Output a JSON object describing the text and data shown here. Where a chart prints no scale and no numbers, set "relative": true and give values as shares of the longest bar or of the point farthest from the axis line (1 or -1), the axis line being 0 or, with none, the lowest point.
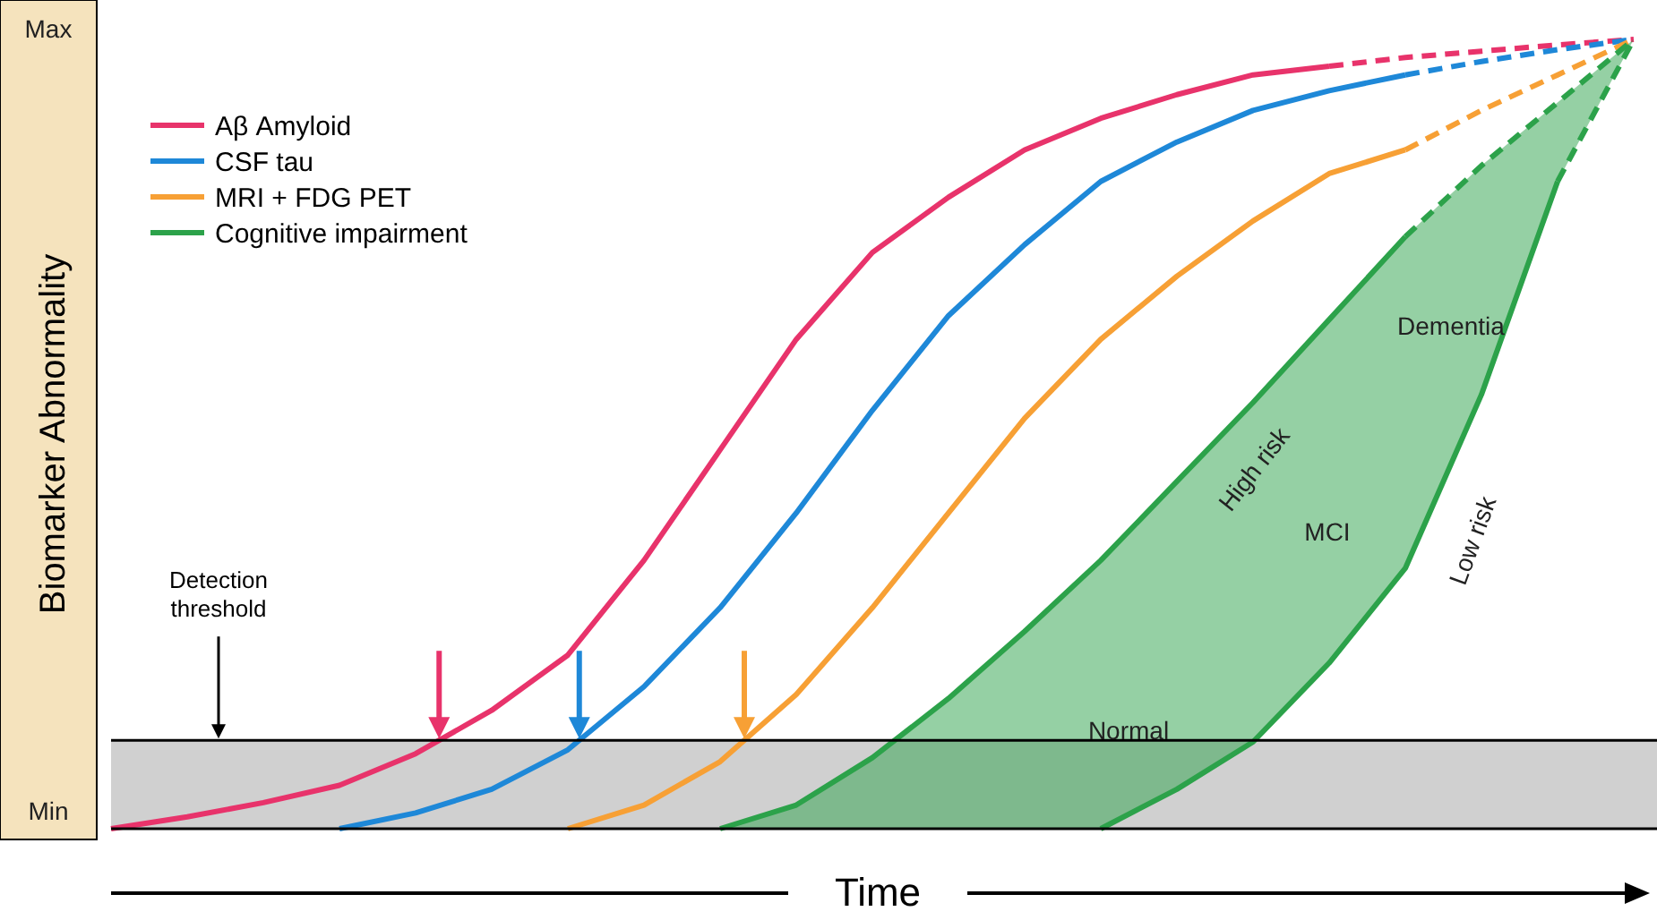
{
  "chart_data": {
    "type": "line",
    "ylabel": "Biomarker Abnormality",
    "xlabel": "Time",
    "categories": [
      null,
      null,
      null,
      null,
      null,
      null,
      null,
      null,
      null,
      null,
      null,
      null,
      null,
      null,
      null,
      null,
      null,
      null,
      null,
      null,
      null
    ],
    "relative": true,
    "legend": "top left",
    "line_style": "solid",
    "series": [
      {
        "name": "Aβ Amyloid",
        "color": "#e8336b",
        "values": [
          0,
          0.015,
          0.033,
          0.055,
          0.095,
          0.15,
          0.22,
          0.34,
          0.48,
          0.62,
          0.73,
          0.8,
          0.86,
          0.9,
          0.93,
          0.955,
          0.966,
          null,
          null,
          null,
          null
        ]
      },
      {
        "name": "CSF tau",
        "color": "#1e88d8",
        "values": [
          null,
          null,
          null,
          0,
          0.02,
          0.05,
          0.1,
          0.18,
          0.28,
          0.4,
          0.53,
          0.65,
          0.74,
          0.82,
          0.87,
          0.91,
          0.935,
          0.955,
          null,
          null,
          null
        ]
      },
      {
        "name": "MRI + FDG PET",
        "color": "#f7a035",
        "values": [
          null,
          null,
          null,
          null,
          null,
          null,
          0,
          0.03,
          0.085,
          0.17,
          0.28,
          0.4,
          0.52,
          0.62,
          0.7,
          0.77,
          0.83,
          0.86,
          null,
          null,
          null
        ]
      },
      {
        "name": "Cognitive impairment",
        "color": "#2ca24a",
        "values": [
          null,
          null,
          null,
          null,
          null,
          null,
          null,
          null,
          0,
          0.03,
          0.09,
          0.165,
          0.25,
          0.34,
          0.44,
          0.54,
          0.645,
          0.75,
          null,
          null,
          null
        ],
        "lower": [
          null,
          null,
          null,
          null,
          null,
          null,
          null,
          null,
          0,
          0,
          0,
          0,
          0,
          0,
          0.05,
          0.11,
          0.21,
          0.33,
          null,
          null,
          null
        ],
        "upper": [
          null,
          null,
          null,
          null,
          null,
          null,
          null,
          null,
          0,
          0.03,
          0.09,
          0.165,
          0.25,
          0.34,
          0.44,
          0.54,
          0.645,
          0.75,
          null,
          null,
          null
        ]
      },
      {
        "color": "#e8336b",
        "line_style": "dashed",
        "values": [
          null,
          null,
          null,
          null,
          null,
          null,
          null,
          null,
          null,
          null,
          null,
          null,
          null,
          null,
          null,
          null,
          0.966,
          0.977,
          0.985,
          0.993,
          1
        ]
      },
      {
        "color": "#1e88d8",
        "line_style": "dashed",
        "values": [
          null,
          null,
          null,
          null,
          null,
          null,
          null,
          null,
          null,
          null,
          null,
          null,
          null,
          null,
          null,
          null,
          null,
          0.955,
          0.972,
          0.987,
          1
        ]
      },
      {
        "color": "#f7a035",
        "line_style": "dashed",
        "values": [
          null,
          null,
          null,
          null,
          null,
          null,
          null,
          null,
          null,
          null,
          null,
          null,
          null,
          null,
          null,
          null,
          null,
          0.86,
          0.91,
          0.955,
          1
        ]
      },
      {
        "color": "#2ca24a",
        "line_style": "dashed",
        "values": [
          null,
          null,
          null,
          null,
          null,
          null,
          null,
          null,
          null,
          null,
          null,
          null,
          null,
          null,
          null,
          null,
          null,
          0.75,
          0.84,
          0.92,
          1
        ],
        "lower": [
          null,
          null,
          null,
          null,
          null,
          null,
          null,
          null,
          null,
          null,
          null,
          null,
          null,
          null,
          null,
          null,
          null,
          0.33,
          0.55,
          0.82,
          1
        ],
        "upper": [
          null,
          null,
          null,
          null,
          null,
          null,
          null,
          null,
          null,
          null,
          null,
          null,
          null,
          null,
          null,
          null,
          null,
          0.75,
          0.84,
          0.92,
          1
        ]
      },
      {
        "color": "#2ca24a",
        "values": [
          null,
          null,
          null,
          null,
          null,
          null,
          null,
          null,
          null,
          null,
          null,
          null,
          null,
          0,
          0.05,
          0.11,
          0.21,
          0.33,
          0.55,
          0.82,
          null
        ]
      },
      {
        "color": "#2ca24a",
        "line_style": "dashed",
        "values": [
          null,
          null,
          null,
          null,
          null,
          null,
          null,
          null,
          null,
          null,
          null,
          null,
          null,
          null,
          null,
          null,
          null,
          null,
          null,
          0.82,
          1
        ]
      }
    ],
    "ref_lines": [
      {
        "axis": "y",
        "value": 0.112,
        "label": "Detection threshold",
        "color": "#000000"
      }
    ],
    "bands": [
      {
        "axis": "y",
        "from": 0,
        "to": 0.112,
        "color": "#d0d0d0"
      }
    ],
    "annotations": [
      "High risk",
      "Low risk",
      "MCI",
      "Dementia",
      "Normal",
      "Max",
      "Min"
    ]
  }
}
